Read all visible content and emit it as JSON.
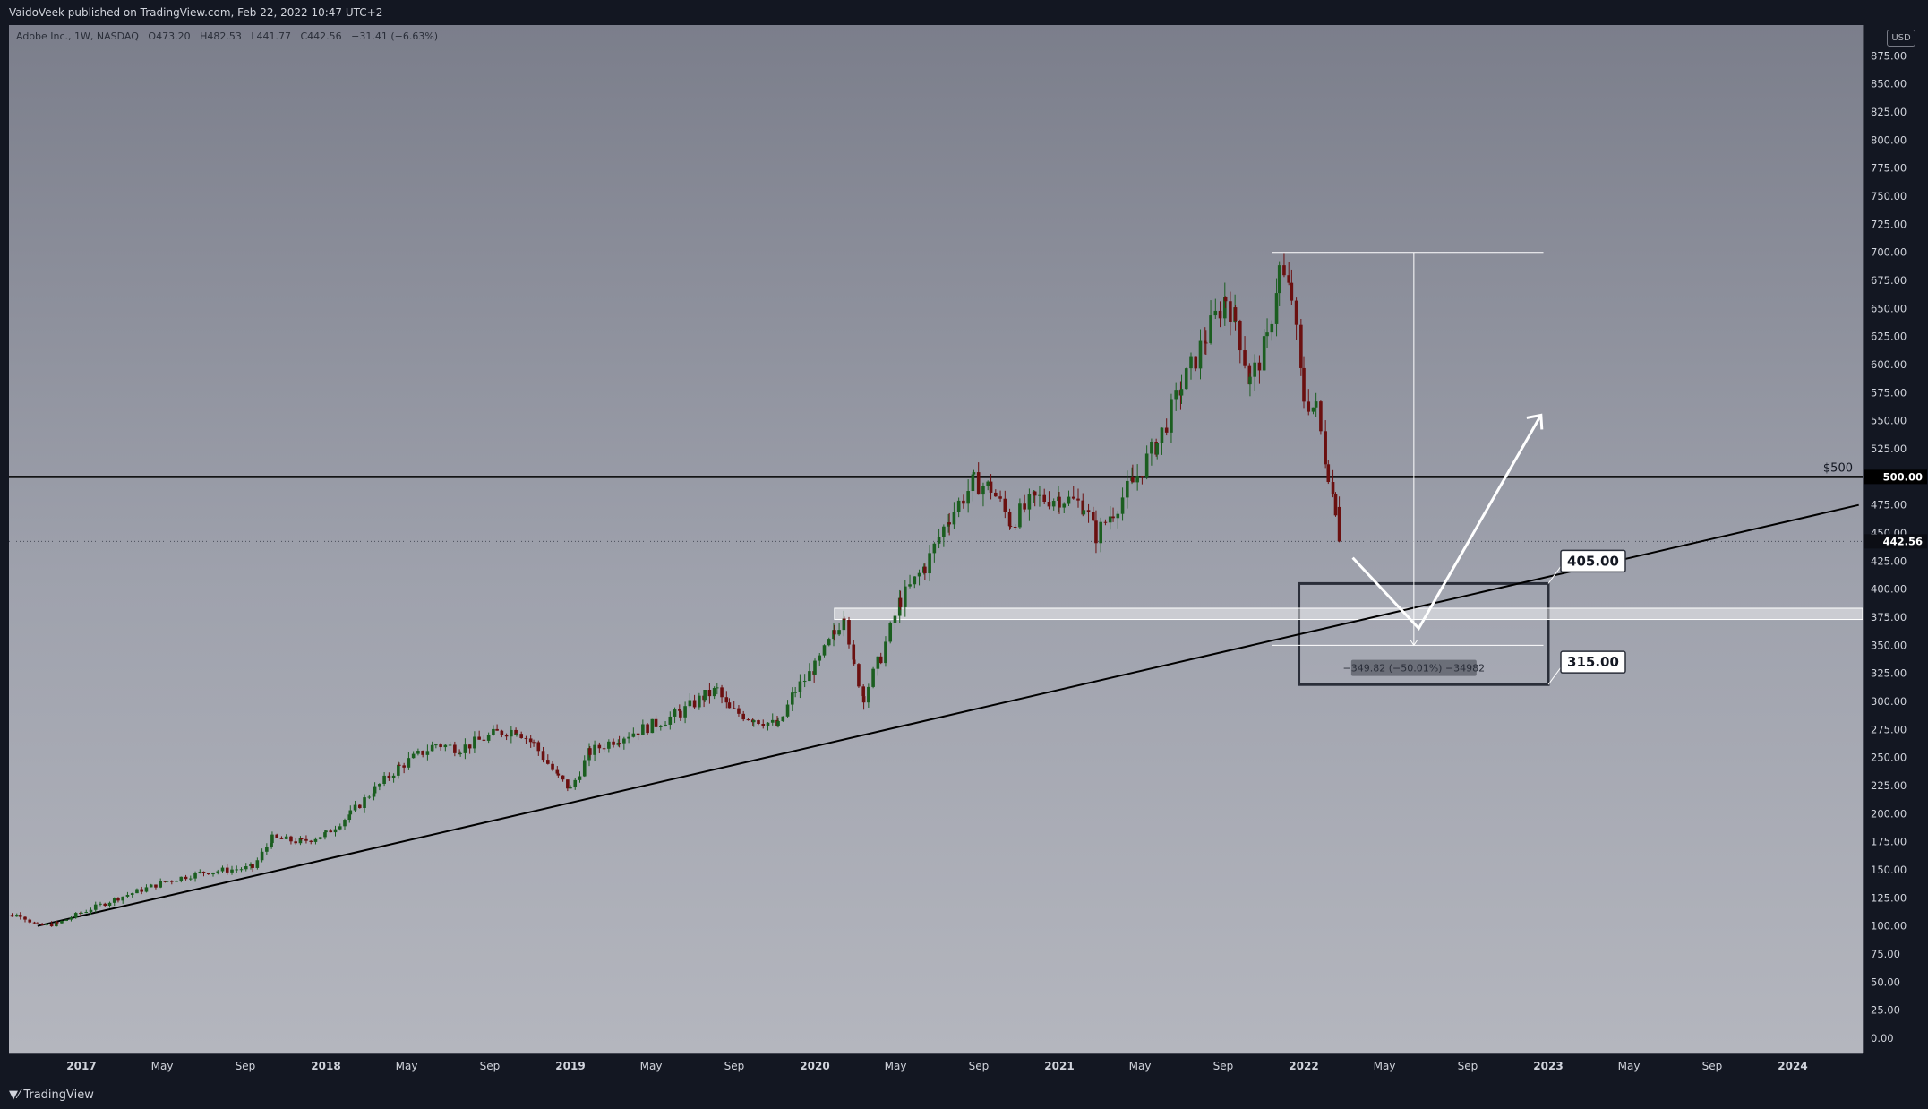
{
  "header": {
    "publisher": "VaidoVeek published on TradingView.com, Feb 22, 2022 10:47 UTC+2"
  },
  "legend": {
    "symbol": "Adobe Inc., 1W, NASDAQ",
    "open": "O473.20",
    "high": "H482.53",
    "low": "L441.77",
    "close": "C442.56",
    "change": "−31.41 (−6.63%)"
  },
  "footer": {
    "brand": "TradingView"
  },
  "price_axis": {
    "currency": "USD"
  },
  "colors": {
    "up": "#1b5e20",
    "down": "#6b1010",
    "background": "#131722"
  },
  "chart_data": {
    "type": "candlestick",
    "symbol": "Adobe Inc., 1W, NASDAQ",
    "ylim": [
      0,
      900
    ],
    "yticks": [
      0,
      25,
      50,
      75,
      100,
      125,
      150,
      175,
      200,
      225,
      250,
      275,
      300,
      325,
      350,
      375,
      400,
      425,
      450,
      475,
      500,
      525,
      550,
      575,
      600,
      625,
      650,
      675,
      700,
      725,
      750,
      775,
      800,
      825,
      850,
      875
    ],
    "ytick_labels": [
      "0.00",
      "25.00",
      "50.00",
      "75.00",
      "100.00",
      "125.00",
      "150.00",
      "175.00",
      "200.00",
      "225.00",
      "250.00",
      "275.00",
      "300.00",
      "325.00",
      "350.00",
      "375.00",
      "400.00",
      "425.00",
      "450.00",
      "475.00",
      "500.00",
      "525.00",
      "550.00",
      "575.00",
      "600.00",
      "625.00",
      "650.00",
      "675.00",
      "700.00",
      "725.00",
      "750.00",
      "775.00",
      "800.00",
      "825.00",
      "850.00",
      "875.00"
    ],
    "xlim": [
      2016.62,
      2024.27
    ],
    "xticks": [
      {
        "t": 2017.0,
        "label": "2017",
        "bold": true
      },
      {
        "t": 2017.33,
        "label": "May",
        "bold": false
      },
      {
        "t": 2017.67,
        "label": "Sep",
        "bold": false
      },
      {
        "t": 2018.0,
        "label": "2018",
        "bold": true
      },
      {
        "t": 2018.33,
        "label": "May",
        "bold": false
      },
      {
        "t": 2018.67,
        "label": "Sep",
        "bold": false
      },
      {
        "t": 2019.0,
        "label": "2019",
        "bold": true
      },
      {
        "t": 2019.33,
        "label": "May",
        "bold": false
      },
      {
        "t": 2019.67,
        "label": "Sep",
        "bold": false
      },
      {
        "t": 2020.0,
        "label": "2020",
        "bold": true
      },
      {
        "t": 2020.33,
        "label": "May",
        "bold": false
      },
      {
        "t": 2020.67,
        "label": "Sep",
        "bold": false
      },
      {
        "t": 2021.0,
        "label": "2021",
        "bold": true
      },
      {
        "t": 2021.33,
        "label": "May",
        "bold": false
      },
      {
        "t": 2021.67,
        "label": "Sep",
        "bold": false
      },
      {
        "t": 2022.0,
        "label": "2022",
        "bold": true
      },
      {
        "t": 2022.33,
        "label": "May",
        "bold": false
      },
      {
        "t": 2022.67,
        "label": "Sep",
        "bold": false
      },
      {
        "t": 2023.0,
        "label": "2023",
        "bold": true
      },
      {
        "t": 2023.33,
        "label": "May",
        "bold": false
      },
      {
        "t": 2023.67,
        "label": "Sep",
        "bold": false
      },
      {
        "t": 2024.0,
        "label": "2024",
        "bold": true
      }
    ],
    "price_path": [
      [
        2016.62,
        108
      ],
      [
        2016.75,
        110
      ],
      [
        2016.82,
        100
      ],
      [
        2016.9,
        102
      ],
      [
        2017.0,
        112
      ],
      [
        2017.15,
        125
      ],
      [
        2017.35,
        140
      ],
      [
        2017.5,
        148
      ],
      [
        2017.7,
        152
      ],
      [
        2017.78,
        178
      ],
      [
        2017.9,
        175
      ],
      [
        2018.0,
        182
      ],
      [
        2018.1,
        200
      ],
      [
        2018.2,
        222
      ],
      [
        2018.3,
        242
      ],
      [
        2018.45,
        262
      ],
      [
        2018.55,
        258
      ],
      [
        2018.7,
        272
      ],
      [
        2018.78,
        275
      ],
      [
        2018.85,
        262
      ],
      [
        2018.95,
        232
      ],
      [
        2019.0,
        222
      ],
      [
        2019.08,
        255
      ],
      [
        2019.2,
        268
      ],
      [
        2019.35,
        280
      ],
      [
        2019.45,
        290
      ],
      [
        2019.55,
        305
      ],
      [
        2019.6,
        310
      ],
      [
        2019.65,
        292
      ],
      [
        2019.75,
        285
      ],
      [
        2019.85,
        278
      ],
      [
        2019.92,
        310
      ],
      [
        2020.0,
        330
      ],
      [
        2020.08,
        360
      ],
      [
        2020.12,
        380
      ],
      [
        2020.16,
        330
      ],
      [
        2020.2,
        305
      ],
      [
        2020.27,
        340
      ],
      [
        2020.35,
        390
      ],
      [
        2020.45,
        420
      ],
      [
        2020.55,
        465
      ],
      [
        2020.65,
        495
      ],
      [
        2020.72,
        490
      ],
      [
        2020.8,
        460
      ],
      [
        2020.9,
        480
      ],
      [
        2021.0,
        482
      ],
      [
        2021.1,
        475
      ],
      [
        2021.15,
        448
      ],
      [
        2021.22,
        470
      ],
      [
        2021.3,
        495
      ],
      [
        2021.4,
        530
      ],
      [
        2021.5,
        580
      ],
      [
        2021.6,
        625
      ],
      [
        2021.68,
        660
      ],
      [
        2021.72,
        640
      ],
      [
        2021.78,
        585
      ],
      [
        2021.85,
        620
      ],
      [
        2021.9,
        685
      ],
      [
        2021.95,
        660
      ],
      [
        2022.0,
        570
      ],
      [
        2022.05,
        560
      ],
      [
        2022.1,
        505
      ],
      [
        2022.13,
        473
      ],
      [
        2022.145,
        442.56
      ]
    ],
    "last_close": 442.56,
    "annotations": {
      "horizontal_line_label": "$500",
      "horizontal_line_value": 500,
      "horizontal_line_value_label": "500.00",
      "last_price_label": "442.56",
      "callout_high": "405.00",
      "callout_low": "315.00",
      "measure_label": "−349.82 (−50.01%) −34982",
      "measure_from": 700,
      "measure_to": 350,
      "target_zone": [
        315,
        405
      ],
      "support_band": [
        373,
        383
      ],
      "trendline": [
        [
          2016.82,
          100
        ],
        [
          2024.27,
          475
        ]
      ]
    }
  }
}
